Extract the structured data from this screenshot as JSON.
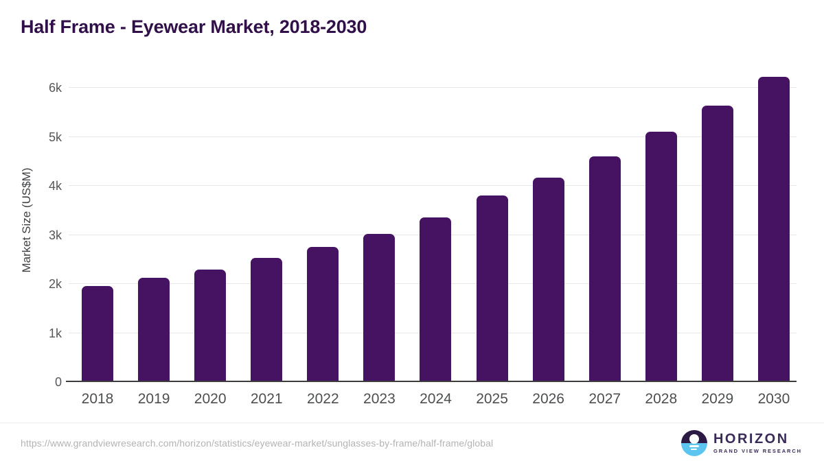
{
  "header": {
    "title": "Half Frame - Eyewear Market, 2018-2030"
  },
  "chart_data": {
    "type": "bar",
    "title": "Half Frame - Eyewear Market, 2018-2030",
    "categories": [
      "2018",
      "2019",
      "2020",
      "2021",
      "2022",
      "2023",
      "2024",
      "2025",
      "2026",
      "2027",
      "2028",
      "2029",
      "2030"
    ],
    "values": [
      1965,
      2130,
      2300,
      2525,
      2750,
      3020,
      3360,
      3800,
      4175,
      4600,
      5100,
      5630,
      6220
    ],
    "xlabel": "",
    "ylabel": "Market Size (US$M)",
    "ylim": [
      0,
      6400
    ],
    "yticks": [
      0,
      1000,
      2000,
      3000,
      4000,
      5000,
      6000
    ],
    "ytick_labels": [
      "0",
      "1k",
      "2k",
      "3k",
      "4k",
      "5k",
      "6k"
    ],
    "grid": "horizontal-only",
    "legend": "none",
    "bar_color": "#461262",
    "unit": "US$M"
  },
  "footer": {
    "source_url": "https://www.grandviewresearch.com/horizon/statistics/eyewear-market/sunglasses-by-frame/half-frame/global",
    "logo": {
      "icon": "horizon-sunset-icon",
      "name": "HORIZON",
      "subtitle": "GRAND VIEW RESEARCH"
    }
  },
  "colors": {
    "title": "#31104a",
    "bar": "#461262",
    "axis_line": "#3d3d3d",
    "gridline": "#e7e7e7",
    "tick_label": "#55575a",
    "url_text": "#b3b3b3",
    "logo_purple": "#3a2a58",
    "logo_blue": "#5bc5f0",
    "logo_dark": "#2c1a45"
  }
}
